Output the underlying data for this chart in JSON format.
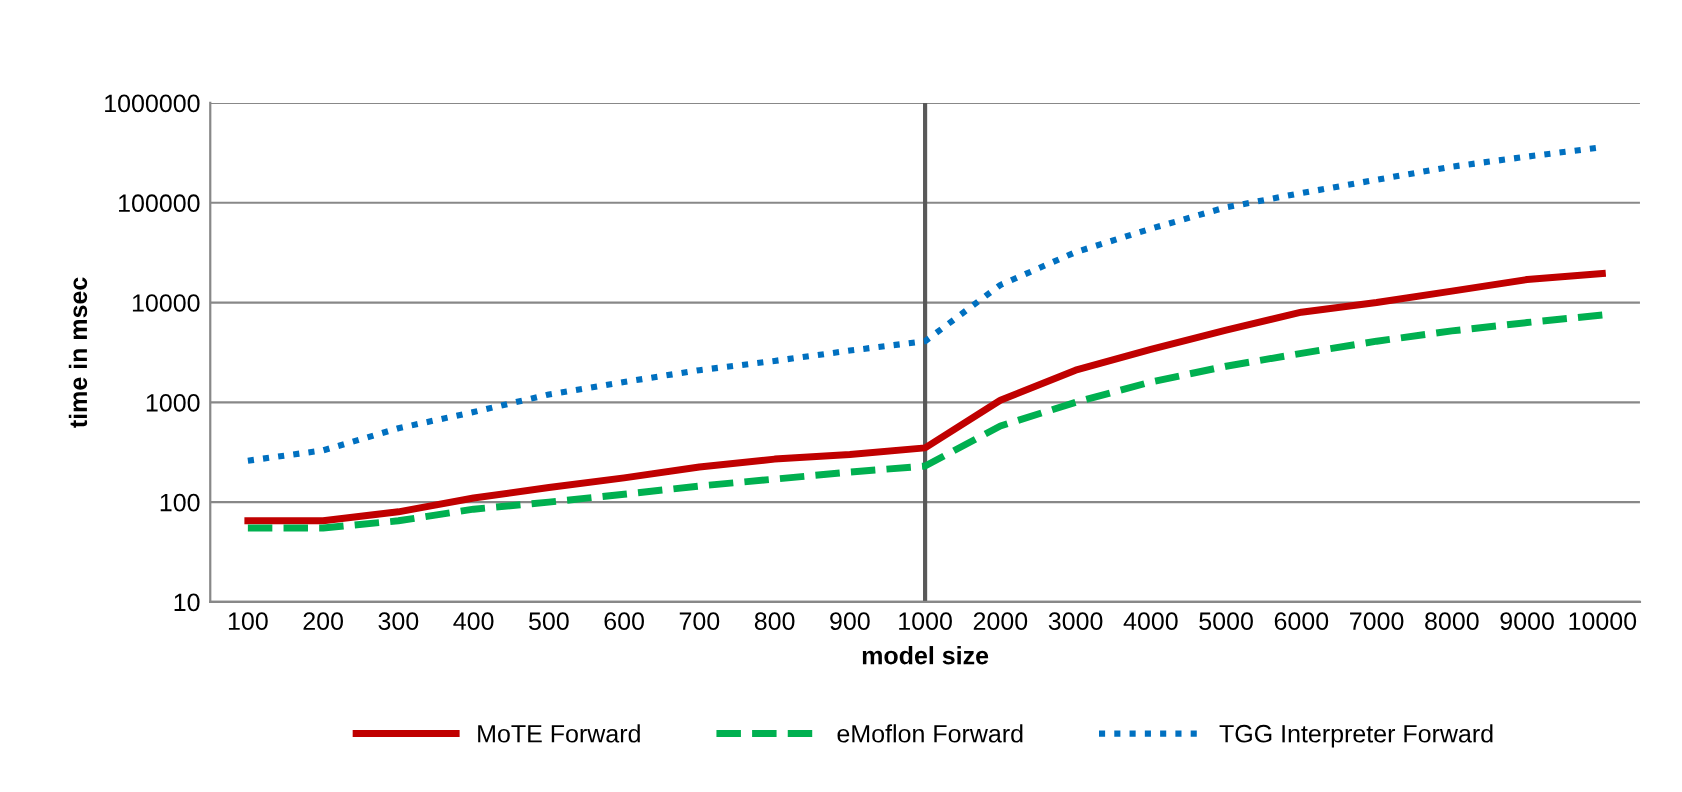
{
  "chart_data": {
    "type": "line",
    "xlabel": "model size",
    "ylabel": "time in msec",
    "log": "y",
    "grid": "y",
    "legend": "bottom",
    "marker": "none",
    "categories": [
      "100",
      "200",
      "300",
      "400",
      "500",
      "600",
      "700",
      "800",
      "900",
      "1000",
      "2000",
      "3000",
      "4000",
      "5000",
      "6000",
      "7000",
      "8000",
      "9000",
      "10000"
    ],
    "ylim": [
      10,
      1000000
    ],
    "yticks": [
      10,
      100,
      1000,
      10000,
      100000,
      1000000
    ],
    "ref_lines": [
      {
        "axis": "x",
        "value": "1000",
        "color": "#595959",
        "line_style": "solid"
      }
    ],
    "series": [
      {
        "name": "MoTE Forward",
        "color": "#c00000",
        "line_style": "solid",
        "values": [
          65,
          65,
          80,
          110,
          140,
          175,
          225,
          270,
          300,
          350,
          1050,
          2100,
          3400,
          5300,
          8000,
          10000,
          13000,
          17000,
          19500
        ]
      },
      {
        "name": "eMoflon Forward",
        "color": "#00b050",
        "line_style": "dashed",
        "values": [
          55,
          55,
          65,
          85,
          100,
          120,
          145,
          170,
          200,
          230,
          580,
          1000,
          1600,
          2300,
          3100,
          4100,
          5200,
          6300,
          7500
        ]
      },
      {
        "name": "TGG Interpreter Forward",
        "color": "#0070c0",
        "line_style": "dotted",
        "values": [
          260,
          330,
          550,
          800,
          1200,
          1600,
          2100,
          2600,
          3300,
          4100,
          15000,
          32000,
          55000,
          90000,
          125000,
          170000,
          230000,
          290000,
          360000
        ]
      }
    ]
  }
}
